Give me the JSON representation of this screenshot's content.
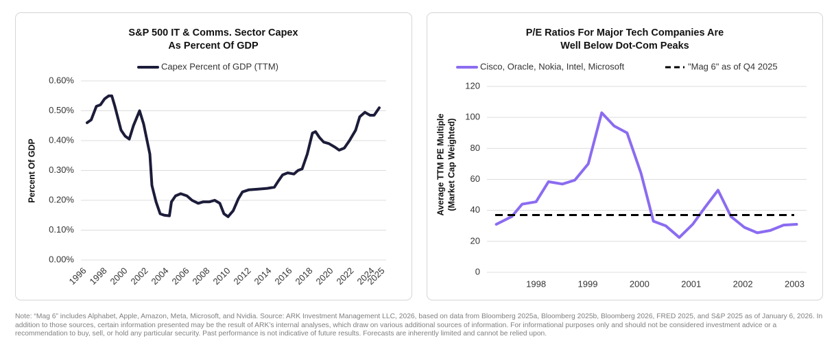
{
  "chart_data": [
    {
      "type": "line",
      "title": [
        "S&P 500 IT & Comms. Sector Capex",
        "As Percent Of GDP"
      ],
      "ylabel": [
        "Percent Of GDP"
      ],
      "series": [
        {
          "name": "Capex Percent of GDP (TTM)",
          "color": "#1c1c3a",
          "x": [
            1996.6,
            1997.0,
            1997.5,
            1997.9,
            1998.3,
            1998.7,
            1999.0,
            1999.3,
            1999.9,
            2000.3,
            2000.7,
            2001.1,
            2001.7,
            2002.1,
            2002.7,
            2002.9,
            2003.3,
            2003.7,
            2004.1,
            2004.6,
            2004.8,
            2005.2,
            2005.7,
            2006.3,
            2006.8,
            2007.4,
            2007.9,
            2008.5,
            2009.0,
            2009.5,
            2009.9,
            2010.3,
            2010.8,
            2011.3,
            2011.7,
            2012.3,
            2013.1,
            2014.1,
            2014.8,
            2015.1,
            2015.6,
            2016.1,
            2016.7,
            2017.1,
            2017.5,
            2018.0,
            2018.5,
            2018.8,
            2019.2,
            2019.6,
            2020.1,
            2020.7,
            2021.1,
            2021.6,
            2022.1,
            2022.7,
            2023.1,
            2023.6,
            2024.1,
            2024.5,
            2025.0
          ],
          "values": [
            0.46,
            0.47,
            0.515,
            0.52,
            0.54,
            0.55,
            0.55,
            0.515,
            0.435,
            0.415,
            0.405,
            0.45,
            0.5,
            0.455,
            0.355,
            0.25,
            0.195,
            0.155,
            0.15,
            0.148,
            0.195,
            0.215,
            0.222,
            0.215,
            0.2,
            0.19,
            0.195,
            0.195,
            0.2,
            0.19,
            0.155,
            0.145,
            0.165,
            0.205,
            0.228,
            0.235,
            0.237,
            0.24,
            0.244,
            0.26,
            0.285,
            0.292,
            0.288,
            0.3,
            0.305,
            0.355,
            0.425,
            0.43,
            0.41,
            0.395,
            0.39,
            0.378,
            0.368,
            0.375,
            0.4,
            0.435,
            0.48,
            0.495,
            0.485,
            0.485,
            0.51
          ]
        }
      ],
      "xlim": [
        1996,
        2025
      ],
      "xticks": [
        1996,
        1998,
        2000,
        2002,
        2004,
        2006,
        2008,
        2010,
        2012,
        2014,
        2016,
        2018,
        2020,
        2022,
        2024,
        2025
      ],
      "xtick_rotation": -45,
      "ylim": [
        0,
        0.6
      ],
      "yticks": [
        {
          "value": 0,
          "label": "0.00%"
        },
        {
          "value": 0.1,
          "label": "0.10%"
        },
        {
          "value": 0.2,
          "label": "0.20%"
        },
        {
          "value": 0.3,
          "label": "0.30%"
        },
        {
          "value": 0.4,
          "label": "0.40%"
        },
        {
          "value": 0.5,
          "label": "0.50%"
        },
        {
          "value": 0.6,
          "label": "0.60%"
        }
      ],
      "grid": true
    },
    {
      "type": "line",
      "title": [
        "P/E Ratios For Major Tech Companies Are",
        "Well Below Dot-Com Peaks"
      ],
      "ylabel": [
        "Average TTM PE Multiple",
        "(Market Cap Weighted)"
      ],
      "series": [
        {
          "name": "Cisco, Oracle, Nokia, Intel, Microsoft",
          "color": "#8b6cf0",
          "x": [
            1997.23,
            1997.53,
            1997.73,
            1998.0,
            1998.24,
            1998.51,
            1998.75,
            1999.01,
            1999.27,
            1999.51,
            1999.76,
            2000.03,
            2000.27,
            2000.51,
            2000.77,
            2001.03,
            2001.27,
            2001.52,
            2001.77,
            2002.03,
            2002.28,
            2002.53,
            2002.79,
            2003.04
          ],
          "values": [
            31,
            36,
            44,
            45.5,
            58.5,
            57,
            59.5,
            70,
            103,
            94.5,
            90,
            64,
            33,
            30,
            22.5,
            31,
            42,
            53,
            36,
            29,
            25.5,
            27,
            30.5,
            31
          ]
        }
      ],
      "reference": {
        "name": "\"Mag 6\" as of Q4 2025",
        "value": 37,
        "color": "#000000",
        "dash": true
      },
      "xlim": [
        1997.05,
        2003.1
      ],
      "xticks": [
        1998,
        1999,
        2000,
        2001,
        2002,
        2003
      ],
      "ylim": [
        0,
        120
      ],
      "yticks": [
        0,
        20,
        40,
        60,
        80,
        100,
        120
      ],
      "grid": true
    }
  ],
  "note": "Note: “Mag 6” includes Alphabet, Apple, Amazon, Meta, Microsoft, and Nvidia. Source: ARK Investment Management LLC, 2026, based on data from Bloomberg 2025a, Bloomberg 2025b, Bloomberg 2026, FRED 2025, and S&P 2025 as of January 6, 2026. In addition to those sources, certain information presented may be the result of ARK’s internal analyses, which draw on various additional sources of information. For informational purposes only and should not be considered investment advice or a recommendation to buy, sell, or hold any particular security. Past performance is not indicative of future results. Forecasts are inherently limited and cannot be relied upon."
}
